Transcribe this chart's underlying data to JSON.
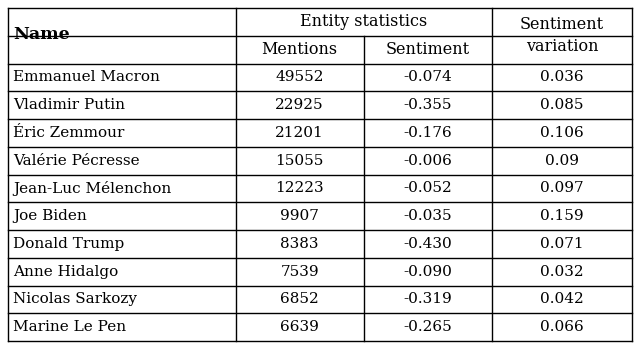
{
  "col_headers_row1": [
    "Name",
    "Entity statistics",
    "Sentiment\nvariation"
  ],
  "col_headers_row2": [
    "Mentions",
    "Sentiment"
  ],
  "rows": [
    [
      "Emmanuel Macron",
      "49552",
      "-0.074",
      "0.036"
    ],
    [
      "Vladimir Putin",
      "22925",
      "-0.355",
      "0.085"
    ],
    [
      "Éric Zemmour",
      "21201",
      "-0.176",
      "0.106"
    ],
    [
      "Valérie Pécresse",
      "15055",
      "-0.006",
      "0.09"
    ],
    [
      "Jean-Luc Mélenchon",
      "12223",
      "-0.052",
      "0.097"
    ],
    [
      "Joe Biden",
      "9907",
      "-0.035",
      "0.159"
    ],
    [
      "Donald Trump",
      "8383",
      "-0.430",
      "0.071"
    ],
    [
      "Anne Hidalgo",
      "7539",
      "-0.090",
      "0.032"
    ],
    [
      "Nicolas Sarkozy",
      "6852",
      "-0.319",
      "0.042"
    ],
    [
      "Marine Le Pen",
      "6639",
      "-0.265",
      "0.066"
    ]
  ],
  "background_color": "#ffffff",
  "line_color": "#000000",
  "text_color": "#000000",
  "header_fontsize": 11.5,
  "cell_fontsize": 11.0,
  "name_bold_fontsize": 12.5
}
